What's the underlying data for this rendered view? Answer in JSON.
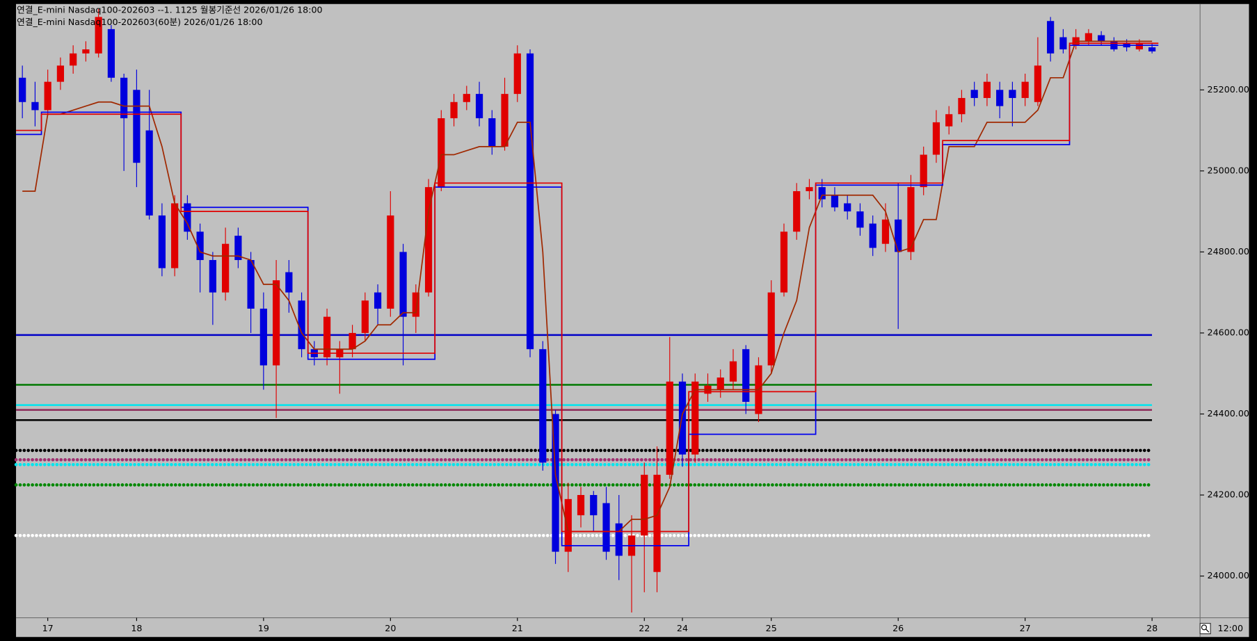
{
  "chart_data": {
    "type": "candlestick",
    "title": "연결_E-mini Nasdaq100-202603 --1. 1125 월봉기준선  2026/01/26 18:00",
    "subtitle": "연결_E-mini Nasdaq100-202603(60분) 2026/01/26 18:00",
    "time_label": "12:00",
    "categories": [
      null,
      null,
      "17",
      null,
      null,
      null,
      null,
      null,
      null,
      "18",
      null,
      null,
      null,
      null,
      null,
      null,
      null,
      null,
      null,
      "19",
      null,
      null,
      null,
      null,
      null,
      null,
      null,
      null,
      null,
      "20",
      null,
      null,
      null,
      null,
      null,
      null,
      null,
      null,
      null,
      "21",
      null,
      null,
      null,
      null,
      null,
      null,
      null,
      null,
      null,
      "22",
      null,
      null,
      "24",
      null,
      null,
      null,
      null,
      null,
      null,
      "25",
      null,
      null,
      null,
      null,
      null,
      null,
      null,
      null,
      null,
      "26",
      null,
      null,
      null,
      null,
      null,
      null,
      null,
      null,
      null,
      "27",
      null,
      null,
      null,
      null,
      null,
      null,
      null,
      null,
      null,
      "28"
    ],
    "open": [
      25230,
      25170,
      25150,
      25220,
      25260,
      25290,
      25290,
      25350,
      25230,
      25200,
      25100,
      24890,
      24760,
      24920,
      24850,
      24780,
      24700,
      24840,
      24780,
      24660,
      24520,
      24750,
      24680,
      24560,
      24540,
      24540,
      24560,
      24600,
      24700,
      24660,
      24800,
      24640,
      24700,
      24960,
      25130,
      25170,
      25190,
      25130,
      25060,
      25190,
      25290,
      24560,
      24400,
      24060,
      24150,
      24200,
      24180,
      24130,
      24050,
      24100,
      24010,
      24250,
      24480,
      24300,
      24450,
      24460,
      24480,
      24560,
      24400,
      24520,
      24700,
      24850,
      24950,
      24960,
      24940,
      24920,
      24900,
      24870,
      24820,
      24880,
      24800,
      24960,
      25040,
      25110,
      25140,
      25200,
      25180,
      25200,
      25200,
      25180,
      25170,
      25370,
      25330,
      25310,
      25320,
      25335,
      25320,
      25315,
      25300,
      25305
    ],
    "high": [
      25260,
      25220,
      25250,
      25280,
      25310,
      25320,
      25400,
      25360,
      25240,
      25250,
      25200,
      24920,
      24940,
      24940,
      24870,
      24800,
      24860,
      24860,
      24800,
      24700,
      24780,
      24780,
      24700,
      24580,
      24660,
      24580,
      24620,
      24700,
      24720,
      24950,
      24820,
      24720,
      24980,
      25150,
      25190,
      25210,
      25220,
      25150,
      25230,
      25310,
      25300,
      24580,
      24410,
      24230,
      24220,
      24210,
      24220,
      24200,
      24150,
      24280,
      24320,
      24590,
      24500,
      24500,
      24500,
      24510,
      24560,
      24570,
      24540,
      24730,
      24870,
      24970,
      24980,
      24980,
      24960,
      24940,
      24920,
      24890,
      24920,
      24970,
      24990,
      25060,
      25150,
      25160,
      25200,
      25220,
      25240,
      25220,
      25220,
      25240,
      25330,
      25380,
      25350,
      25350,
      25350,
      25345,
      25330,
      25325,
      25325,
      25315
    ],
    "low": [
      25130,
      25110,
      25140,
      25200,
      25240,
      25270,
      25280,
      25220,
      25000,
      24960,
      24880,
      24740,
      24740,
      24830,
      24700,
      24620,
      24680,
      24760,
      24600,
      24460,
      24390,
      24650,
      24540,
      24520,
      24520,
      24450,
      24540,
      24580,
      24620,
      24640,
      24520,
      24600,
      24690,
      24950,
      25110,
      25150,
      25110,
      25040,
      25050,
      25170,
      24540,
      24260,
      24030,
      24010,
      24120,
      24110,
      24040,
      23990,
      23910,
      23960,
      23960,
      24240,
      24270,
      24280,
      24430,
      24440,
      24460,
      24400,
      24380,
      24500,
      24690,
      24830,
      24930,
      24910,
      24900,
      24880,
      24840,
      24790,
      24800,
      24610,
      24780,
      24940,
      25020,
      25090,
      25120,
      25160,
      25160,
      25130,
      25110,
      25160,
      25160,
      25270,
      25290,
      25300,
      25310,
      25310,
      25295,
      25295,
      25295,
      25290
    ],
    "close": [
      25170,
      25150,
      25220,
      25260,
      25290,
      25300,
      25380,
      25230,
      25130,
      25020,
      24890,
      24760,
      24920,
      24850,
      24780,
      24700,
      24820,
      24780,
      24660,
      24520,
      24730,
      24700,
      24560,
      24540,
      24640,
      24560,
      24600,
      24680,
      24660,
      24890,
      24640,
      24700,
      24960,
      25130,
      25170,
      25190,
      25130,
      25060,
      25190,
      25290,
      24560,
      24280,
      24060,
      24190,
      24200,
      24150,
      24060,
      24050,
      24100,
      24250,
      24250,
      24480,
      24300,
      24480,
      24470,
      24490,
      24530,
      24430,
      24520,
      24700,
      24850,
      24950,
      24960,
      24930,
      24910,
      24900,
      24860,
      24810,
      24880,
      24800,
      24960,
      25040,
      25120,
      25140,
      25180,
      25180,
      25220,
      25160,
      25180,
      25220,
      25260,
      25290,
      25300,
      25330,
      25340,
      25320,
      25300,
      25305,
      25315,
      25295
    ],
    "up_color": "#e00000",
    "down_color": "#0000dd",
    "indicators": [
      {
        "color": "#a02800",
        "step": false,
        "values": [
          24950,
          24950,
          25140,
          25140,
          25150,
          25160,
          25170,
          25170,
          25160,
          25160,
          25160,
          25060,
          24920,
          24870,
          24800,
          24790,
          24790,
          24790,
          24780,
          24720,
          24720,
          24680,
          24600,
          24560,
          24560,
          24560,
          24560,
          24580,
          24620,
          24620,
          24650,
          24650,
          24900,
          25040,
          25040,
          25050,
          25060,
          25060,
          25060,
          25120,
          25120,
          24800,
          24250,
          24110,
          24110,
          24110,
          24110,
          24110,
          24140,
          24140,
          24150,
          24220,
          24400,
          24460,
          24460,
          24460,
          24460,
          24460,
          24460,
          24500,
          24600,
          24680,
          24860,
          24940,
          24940,
          24940,
          24940,
          24940,
          24900,
          24800,
          24810,
          24880,
          24880,
          25060,
          25060,
          25060,
          25120,
          25120,
          25120,
          25120,
          25150,
          25230,
          25230,
          25320,
          25320,
          25320,
          25320,
          25320,
          25320,
          25320
        ]
      },
      {
        "color": "#0000ee",
        "step": true,
        "values": [
          25090,
          25090,
          25145,
          25145,
          25145,
          25145,
          25145,
          25145,
          25145,
          25145,
          25145,
          25145,
          25145,
          24910,
          24910,
          24910,
          24910,
          24910,
          24910,
          24910,
          24910,
          24910,
          24910,
          24535,
          24535,
          24535,
          24535,
          24535,
          24535,
          24535,
          24535,
          24535,
          24535,
          24960,
          24960,
          24960,
          24960,
          24960,
          24960,
          24960,
          24960,
          24960,
          24960,
          24075,
          24075,
          24075,
          24075,
          24075,
          24075,
          24075,
          24075,
          24075,
          24075,
          24350,
          24350,
          24350,
          24350,
          24350,
          24350,
          24350,
          24350,
          24350,
          24350,
          24965,
          24965,
          24965,
          24965,
          24965,
          24965,
          24965,
          24965,
          24965,
          24965,
          25065,
          25065,
          25065,
          25065,
          25065,
          25065,
          25065,
          25065,
          25065,
          25065,
          25310,
          25310,
          25310,
          25310,
          25310,
          25310,
          25310
        ]
      },
      {
        "color": "#e00000",
        "step": true,
        "values": [
          25100,
          25100,
          25140,
          25140,
          25140,
          25140,
          25140,
          25140,
          25140,
          25140,
          25140,
          25140,
          25140,
          24900,
          24900,
          24900,
          24900,
          24900,
          24900,
          24900,
          24900,
          24900,
          24900,
          24550,
          24550,
          24550,
          24550,
          24550,
          24550,
          24550,
          24550,
          24550,
          24550,
          24970,
          24970,
          24970,
          24970,
          24970,
          24970,
          24970,
          24970,
          24970,
          24970,
          24110,
          24110,
          24110,
          24110,
          24110,
          24110,
          24110,
          24110,
          24110,
          24110,
          24455,
          24455,
          24455,
          24455,
          24455,
          24455,
          24455,
          24455,
          24455,
          24455,
          24970,
          24970,
          24970,
          24970,
          24970,
          24970,
          24970,
          24970,
          24970,
          24970,
          25075,
          25075,
          25075,
          25075,
          25075,
          25075,
          25075,
          25075,
          25075,
          25075,
          25315,
          25315,
          25315,
          25315,
          25315,
          25315,
          25315
        ]
      }
    ],
    "levels": [
      {
        "value": 24595,
        "color": "#0000c8",
        "style": "solid"
      },
      {
        "value": 24472,
        "color": "#007800",
        "style": "solid"
      },
      {
        "value": 24422,
        "color": "#00e5ee",
        "style": "solid"
      },
      {
        "value": 24410,
        "color": "#8b2a5a",
        "style": "solid"
      },
      {
        "value": 24385,
        "color": "#000000",
        "style": "solid"
      },
      {
        "value": 24310,
        "color": "#000000",
        "style": "dotted"
      },
      {
        "value": 24287,
        "color": "#a03070",
        "style": "dotted"
      },
      {
        "value": 24275,
        "color": "#00e5ee",
        "style": "dotted"
      },
      {
        "value": 24225,
        "color": "#008800",
        "style": "dotted"
      },
      {
        "value": 24100,
        "color": "#ffffff",
        "style": "dotted"
      }
    ],
    "ylim": [
      23897,
      25410
    ],
    "yticks": [
      {
        "value": 24000,
        "label": "24000.00"
      },
      {
        "value": 24200,
        "label": "24200.00"
      },
      {
        "value": 24400,
        "label": "24400.00"
      },
      {
        "value": 24600,
        "label": "24600.00"
      },
      {
        "value": 24800,
        "label": "24800.00"
      },
      {
        "value": 25000,
        "label": "25000.00"
      },
      {
        "value": 25200,
        "label": "25200.00"
      }
    ]
  }
}
